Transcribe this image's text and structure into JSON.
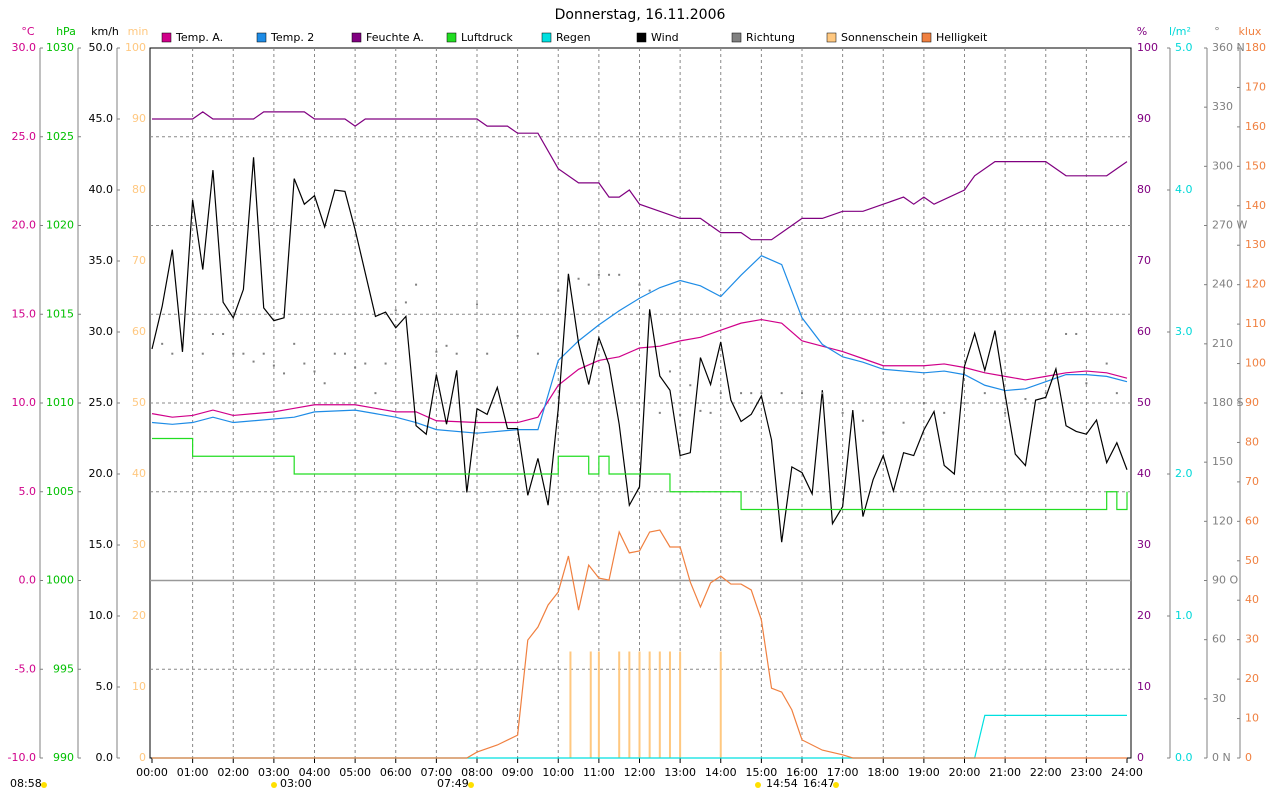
{
  "chart_data": {
    "type": "line",
    "title": "Donnerstag, 16.11.2006",
    "xlim": [
      0,
      24
    ],
    "xticks": [
      {
        "value": 0,
        "label": "00:00"
      },
      {
        "value": 1,
        "label": "01:00"
      },
      {
        "value": 2,
        "label": "02:00"
      },
      {
        "value": 3,
        "label": "03:00"
      },
      {
        "value": 4,
        "label": "04:00"
      },
      {
        "value": 5,
        "label": "05:00"
      },
      {
        "value": 6,
        "label": "06:00"
      },
      {
        "value": 7,
        "label": "07:00"
      },
      {
        "value": 8,
        "label": "08:00"
      },
      {
        "value": 9,
        "label": "09:00"
      },
      {
        "value": 10,
        "label": "10:00"
      },
      {
        "value": 11,
        "label": "11:00"
      },
      {
        "value": 12,
        "label": "12:00"
      },
      {
        "value": 13,
        "label": "13:00"
      },
      {
        "value": 14,
        "label": "14:00"
      },
      {
        "value": 15,
        "label": "15:00"
      },
      {
        "value": 16,
        "label": "16:00"
      },
      {
        "value": 17,
        "label": "17:00"
      },
      {
        "value": 18,
        "label": "18:00"
      },
      {
        "value": 19,
        "label": "19:00"
      },
      {
        "value": 20,
        "label": "20:00"
      },
      {
        "value": 21,
        "label": "21:00"
      },
      {
        "value": 22,
        "label": "22:00"
      },
      {
        "value": 23,
        "label": "23:00"
      },
      {
        "value": 24,
        "label": "24:00"
      }
    ],
    "grid": true,
    "axes": [
      {
        "name": "°C",
        "side": "left",
        "color": "#d0008a",
        "zero_line": true,
        "ylim": [
          -10,
          30
        ],
        "yticks": [
          {
            "value": -10,
            "label": "-10.0"
          },
          {
            "value": -5,
            "label": "-5.0"
          },
          {
            "value": 0,
            "label": "0.0"
          },
          {
            "value": 5,
            "label": "5.0"
          },
          {
            "value": 10,
            "label": "10.0"
          },
          {
            "value": 15,
            "label": "15.0"
          },
          {
            "value": 20,
            "label": "20.0"
          },
          {
            "value": 25,
            "label": "25.0"
          },
          {
            "value": 30,
            "label": "30.0"
          }
        ]
      },
      {
        "name": "hPa",
        "side": "left",
        "color": "#00c000",
        "ylim": [
          990,
          1030
        ],
        "yticks": [
          990,
          995,
          1000,
          1005,
          1010,
          1015,
          1020,
          1025,
          1030
        ]
      },
      {
        "name": "km/h",
        "side": "left",
        "color": "#000000",
        "ylim": [
          0,
          50
        ],
        "yticks": [
          {
            "value": 0,
            "label": "0.0"
          },
          {
            "value": 5,
            "label": "5.0"
          },
          {
            "value": 10,
            "label": "10.0"
          },
          {
            "value": 15,
            "label": "15.0"
          },
          {
            "value": 20,
            "label": "20.0"
          },
          {
            "value": 25,
            "label": "25.0"
          },
          {
            "value": 30,
            "label": "30.0"
          },
          {
            "value": 35,
            "label": "35.0"
          },
          {
            "value": 40,
            "label": "40.0"
          },
          {
            "value": 45,
            "label": "45.0"
          },
          {
            "value": 50,
            "label": "50.0"
          }
        ]
      },
      {
        "name": "min",
        "side": "left",
        "color": "#ffc880",
        "ylim": [
          0,
          100
        ],
        "yticks": [
          0,
          10,
          20,
          30,
          40,
          50,
          60,
          70,
          80,
          90,
          100
        ]
      },
      {
        "name": "%",
        "side": "right",
        "color": "#800080",
        "ylim": [
          0,
          100
        ],
        "yticks": [
          0,
          10,
          20,
          30,
          40,
          50,
          60,
          70,
          80,
          90,
          100
        ]
      },
      {
        "name": "l/m²",
        "side": "right",
        "color": "#00d8d8",
        "ylim": [
          0,
          5
        ],
        "yticks": [
          {
            "value": 0,
            "label": "0.0"
          },
          {
            "value": 1,
            "label": "1.0"
          },
          {
            "value": 2,
            "label": "2.0"
          },
          {
            "value": 3,
            "label": "3.0"
          },
          {
            "value": 4,
            "label": "4.0"
          },
          {
            "value": 5,
            "label": "5.0"
          }
        ]
      },
      {
        "name": "°",
        "side": "right",
        "color": "#808080",
        "ylim": [
          0,
          360
        ],
        "yticks": [
          {
            "value": 0,
            "label": "0 N"
          },
          30,
          60,
          {
            "value": 90,
            "label": "90 O"
          },
          120,
          150,
          {
            "value": 180,
            "label": "180 S"
          },
          210,
          240,
          {
            "value": 270,
            "label": "270 W"
          },
          300,
          330,
          {
            "value": 360,
            "label": "360 N"
          }
        ]
      },
      {
        "name": "klux",
        "side": "right",
        "color": "#f08040",
        "ylim": [
          0,
          180
        ],
        "yticks": [
          0,
          10,
          20,
          30,
          40,
          50,
          60,
          70,
          80,
          90,
          100,
          110,
          120,
          130,
          140,
          150,
          160,
          170,
          180
        ]
      }
    ],
    "series": [
      {
        "name": "Temp. A.",
        "color": "#d0008a",
        "type": "line",
        "axis": 0,
        "x": [
          0,
          0.5,
          1,
          1.5,
          2,
          2.5,
          3,
          3.5,
          4,
          5,
          5.5,
          6,
          6.5,
          7,
          8,
          9,
          9.5,
          10,
          10.5,
          11,
          11.5,
          12,
          12.5,
          13,
          13.5,
          14,
          14.5,
          15,
          15.5,
          16,
          16.5,
          17,
          17.5,
          18,
          19,
          19.5,
          20,
          20.5,
          21,
          21.5,
          22,
          22.5,
          23,
          23.5,
          24
        ],
        "values": [
          9.4,
          9.2,
          9.3,
          9.6,
          9.3,
          9.4,
          9.5,
          9.7,
          9.9,
          9.9,
          9.7,
          9.5,
          9.5,
          9.0,
          8.9,
          8.9,
          9.2,
          11.0,
          11.9,
          12.4,
          12.6,
          13.1,
          13.2,
          13.5,
          13.7,
          14.1,
          14.5,
          14.7,
          14.5,
          13.5,
          13.2,
          12.9,
          12.5,
          12.1,
          12.1,
          12.2,
          12.0,
          11.7,
          11.5,
          11.3,
          11.5,
          11.7,
          11.8,
          11.7,
          11.4
        ]
      },
      {
        "name": "Temp. 2",
        "color": "#1e8ce6",
        "type": "line",
        "axis": 0,
        "x": [
          0,
          0.5,
          1,
          1.5,
          2,
          3,
          3.5,
          4,
          5,
          5.5,
          6,
          6.5,
          7,
          8,
          9,
          9.5,
          10,
          10.5,
          11,
          11.5,
          12,
          12.5,
          13,
          13.5,
          14,
          14.5,
          15,
          15.5,
          16,
          16.5,
          17,
          17.5,
          18,
          19,
          19.5,
          20,
          20.5,
          21,
          21.5,
          22,
          22.5,
          23,
          23.5,
          24
        ],
        "values": [
          8.9,
          8.8,
          8.9,
          9.2,
          8.9,
          9.1,
          9.2,
          9.5,
          9.6,
          9.4,
          9.2,
          8.9,
          8.5,
          8.3,
          8.5,
          8.5,
          12.4,
          13.5,
          14.4,
          15.2,
          15.9,
          16.5,
          16.9,
          16.6,
          16.0,
          17.2,
          18.3,
          17.8,
          14.8,
          13.3,
          12.6,
          12.3,
          11.9,
          11.7,
          11.8,
          11.6,
          11.0,
          10.7,
          10.8,
          11.2,
          11.6,
          11.6,
          11.5,
          11.2
        ]
      },
      {
        "name": "Feuchte A.",
        "color": "#800080",
        "type": "line",
        "axis": 4,
        "x": [
          0,
          1,
          1.25,
          1.5,
          2.5,
          2.75,
          3.75,
          4,
          4.75,
          5,
          5.25,
          8,
          8.25,
          8.75,
          9,
          9.5,
          10,
          10.5,
          11,
          11.25,
          11.5,
          11.75,
          12,
          12.5,
          13,
          13.5,
          14,
          14.5,
          14.75,
          15.25,
          15.5,
          16,
          16.5,
          17,
          17.5,
          18,
          18.5,
          18.75,
          19,
          19.25,
          20,
          20.25,
          20.75,
          22,
          22.5,
          23.5,
          24
        ],
        "values": [
          90,
          90,
          91,
          90,
          90,
          91,
          91,
          90,
          90,
          89,
          90,
          90,
          89,
          89,
          88,
          88,
          83,
          81,
          81,
          79,
          79,
          80,
          78,
          77,
          76,
          76,
          74,
          74,
          73,
          73,
          74,
          76,
          76,
          77,
          77,
          78,
          79,
          78,
          79,
          78,
          80,
          82,
          84,
          84,
          82,
          82,
          84
        ]
      },
      {
        "name": "Luftdruck",
        "color": "#22dd22",
        "type": "step",
        "axis": 1,
        "x": [
          0,
          0.75,
          1,
          3.25,
          3.5,
          9.75,
          10,
          10.5,
          10.75,
          11,
          11.25,
          12.5,
          12.75,
          14.25,
          14.5,
          23.25,
          23.5,
          23.75,
          24
        ],
        "values": [
          1008,
          1008,
          1007,
          1007,
          1006,
          1006,
          1007,
          1007,
          1006,
          1007,
          1006,
          1006,
          1005,
          1005,
          1004,
          1004,
          1005,
          1004,
          1005
        ]
      },
      {
        "name": "Regen",
        "color": "#00e0e0",
        "type": "line",
        "axis": 5,
        "x": [
          0,
          20.25,
          20.5,
          24
        ],
        "values": [
          0,
          0,
          0.3,
          0.3
        ]
      },
      {
        "name": "Wind",
        "color": "#000000",
        "type": "line",
        "axis": 2,
        "x": [
          0,
          0.25,
          0.5,
          0.75,
          1,
          1.25,
          1.5,
          1.75,
          2,
          2.25,
          2.5,
          2.75,
          3,
          3.25,
          3.5,
          3.75,
          4,
          4.25,
          4.5,
          4.75,
          5,
          5.5,
          5.75,
          6,
          6.25,
          6.5,
          6.75,
          7,
          7.25,
          7.5,
          7.75,
          8,
          8.25,
          8.5,
          8.75,
          9,
          9.25,
          9.5,
          9.75,
          10,
          10.25,
          10.5,
          10.75,
          11,
          11.25,
          11.5,
          11.75,
          12,
          12.25,
          12.5,
          12.75,
          13,
          13.25,
          13.5,
          13.75,
          14,
          14.25,
          14.5,
          14.75,
          15,
          15.25,
          15.5,
          15.75,
          16,
          16.25,
          16.5,
          16.75,
          17,
          17.25,
          17.5,
          17.75,
          18,
          18.25,
          18.5,
          18.75,
          19,
          19.25,
          19.5,
          19.75,
          20,
          20.25,
          20.5,
          20.75,
          21,
          21.25,
          21.5,
          21.75,
          22,
          22.25,
          22.5,
          22.75,
          23,
          23.25,
          23.5,
          23.75,
          24
        ],
        "values": [
          28.8,
          31.8,
          35.8,
          28.6,
          39.3,
          34.4,
          41.4,
          32.1,
          31.0,
          33.0,
          42.3,
          31.7,
          30.8,
          31.0,
          40.8,
          39.0,
          39.6,
          37.4,
          40.0,
          39.9,
          37.2,
          31.1,
          31.4,
          30.3,
          31.1,
          23.4,
          22.8,
          27.0,
          23.5,
          27.3,
          18.7,
          24.6,
          24.2,
          26.1,
          23.2,
          23.2,
          18.5,
          21.1,
          17.8,
          24.6,
          34.1,
          29.2,
          26.3,
          29.6,
          27.7,
          23.5,
          17.8,
          19.1,
          31.6,
          26.9,
          25.9,
          21.3,
          21.5,
          28.2,
          26.3,
          29.3,
          25.2,
          23.7,
          24.2,
          25.5,
          22.4,
          15.2,
          20.5,
          20.1,
          18.6,
          25.9,
          16.5,
          17.7,
          24.5,
          17.0,
          19.6,
          21.3,
          18.8,
          21.5,
          21.3,
          23.1,
          24.4,
          20.6,
          20.0,
          27.6,
          29.9,
          27.3,
          30.1,
          25.6,
          21.4,
          20.6,
          25.2,
          25.4,
          27.4,
          23.4,
          23.0,
          22.8,
          23.8,
          20.8,
          22.2,
          20.3
        ]
      },
      {
        "name": "Richtung",
        "color": "#808080",
        "type": "scatter",
        "axis": 6,
        "x": [
          0.25,
          0.5,
          1.25,
          1.5,
          1.75,
          2,
          2.25,
          2.5,
          2.75,
          3,
          3.25,
          3.5,
          3.75,
          4,
          4.25,
          4.5,
          4.75,
          5,
          5.25,
          5.5,
          5.75,
          6,
          6.25,
          6.5,
          7,
          7.25,
          7.5,
          8,
          8.25,
          9,
          9.5,
          10,
          10.5,
          10.75,
          11,
          11.25,
          11.5,
          12,
          12.25,
          12.5,
          12.75,
          13,
          13.25,
          13.5,
          13.75,
          14,
          14.5,
          14.75,
          15,
          15.5,
          16,
          16.5,
          17,
          17.5,
          18,
          18.5,
          19,
          19.5,
          20,
          20.5,
          21,
          21.5,
          22,
          22.5,
          22.75,
          23,
          23.5,
          23.75
        ],
        "values": [
          210,
          205,
          205,
          215,
          215,
          205,
          205,
          201,
          205,
          199,
          195,
          210,
          200,
          196,
          190,
          205,
          205,
          198,
          200,
          185,
          200,
          227,
          231,
          240,
          206,
          209,
          205,
          230,
          205,
          214,
          205,
          237,
          243,
          240,
          245,
          245,
          245,
          240,
          237,
          175,
          196,
          174,
          189,
          176,
          175,
          185,
          185,
          185,
          185,
          185,
          185,
          185,
          175,
          171,
          165,
          170,
          180,
          175,
          180,
          185,
          175,
          182,
          185,
          215,
          215,
          190,
          200,
          185
        ]
      },
      {
        "name": "Sonnenschein",
        "color": "#ffc880",
        "type": "bar",
        "axis": 3,
        "x": [
          10.3,
          10.8,
          11.0,
          11.5,
          11.75,
          12.0,
          12.25,
          12.5,
          12.75,
          13.0,
          14.0
        ],
        "values": [
          15,
          15,
          15,
          15,
          15,
          15,
          15,
          15,
          15,
          15,
          15
        ]
      },
      {
        "name": "Helligkeit",
        "color": "#f08040",
        "type": "line",
        "axis": 7,
        "x": [
          0,
          7.75,
          8,
          8.5,
          9,
          9.25,
          9.5,
          9.75,
          10,
          10.25,
          10.5,
          10.75,
          11,
          11.25,
          11.5,
          11.75,
          12,
          12.25,
          12.5,
          12.75,
          13,
          13.25,
          13.5,
          13.75,
          14,
          14.25,
          14.5,
          14.75,
          15,
          15.25,
          15.5,
          15.75,
          16,
          16.5,
          17,
          17.25,
          24
        ],
        "values": [
          0,
          0,
          1.5,
          3.3,
          5.8,
          29.9,
          33.2,
          38.8,
          42.1,
          51.2,
          37.5,
          48.9,
          45.6,
          45.1,
          57.3,
          52.0,
          52.5,
          57.3,
          57.8,
          53.5,
          53.5,
          44.6,
          38.3,
          44.4,
          46.1,
          44.1,
          44.1,
          42.6,
          35.0,
          17.7,
          16.7,
          12.2,
          4.6,
          2.0,
          0.8,
          0,
          0
        ]
      }
    ],
    "annotations": [
      "08:58",
      "03:00",
      "07:49",
      "14:54",
      "16:47"
    ]
  }
}
